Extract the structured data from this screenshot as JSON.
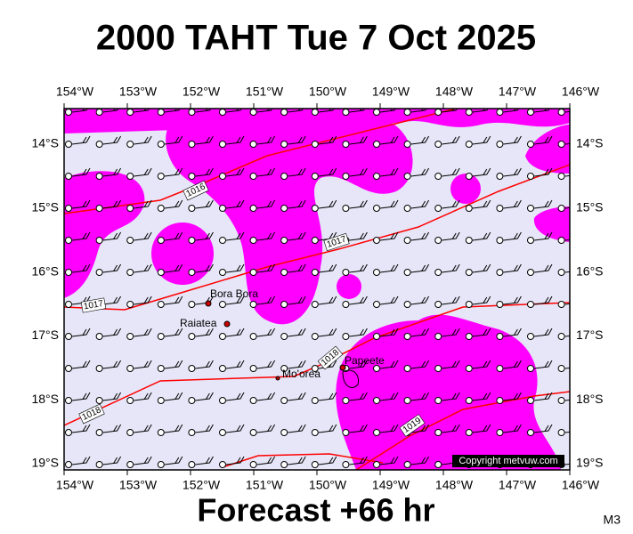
{
  "header": {
    "title": "2000 TAHT Tue 7 Oct 2025"
  },
  "map": {
    "lon_labels": [
      "154°W",
      "153°W",
      "152°W",
      "151°W",
      "150°W",
      "149°W",
      "148°W",
      "147°W",
      "146°W"
    ],
    "lat_labels": [
      "14°S",
      "15°S",
      "16°S",
      "17°S",
      "18°S",
      "19°S"
    ],
    "places": [
      "Bora Bora",
      "Raiatea",
      "Mo'orea",
      "Papeete"
    ],
    "isobar_labels": [
      "1016",
      "1017",
      "1017",
      "1018",
      "1018",
      "1019"
    ],
    "copyright": "Copyright metvuw.com"
  },
  "footer": {
    "forecast": "Forecast +66 hr",
    "model": "M3"
  }
}
